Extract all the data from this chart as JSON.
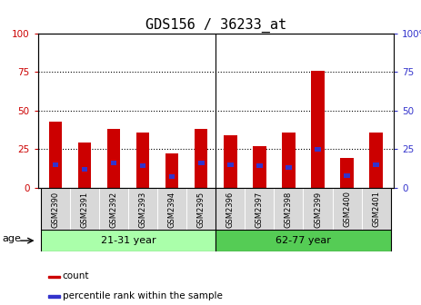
{
  "title": "GDS156 / 36233_at",
  "samples": [
    "GSM2390",
    "GSM2391",
    "GSM2392",
    "GSM2393",
    "GSM2394",
    "GSM2395",
    "GSM2396",
    "GSM2397",
    "GSM2398",
    "GSM2399",
    "GSM2400",
    "GSM2401"
  ],
  "counts": [
    43,
    29,
    38,
    36,
    22,
    38,
    34,
    27,
    36,
    76,
    19,
    36
  ],
  "percentiles": [
    15,
    12,
    16,
    14,
    7,
    16,
    15,
    14,
    13,
    25,
    8,
    15
  ],
  "percentile_bar_height": 3,
  "groups": [
    {
      "label": "21-31 year",
      "start": 0,
      "end": 6,
      "color": "#aaffaa"
    },
    {
      "label": "62-77 year",
      "start": 6,
      "end": 12,
      "color": "#55cc55"
    }
  ],
  "ylim": [
    0,
    100
  ],
  "yticks": [
    0,
    25,
    50,
    75,
    100
  ],
  "bar_color_red": "#cc0000",
  "bar_color_blue": "#3333cc",
  "bar_width": 0.45,
  "age_label": "age",
  "legend_count": "count",
  "legend_percentile": "percentile rank within the sample",
  "title_fontsize": 11,
  "left_tick_color": "#cc0000",
  "right_tick_color": "#3333cc",
  "sep_index": 5.5
}
